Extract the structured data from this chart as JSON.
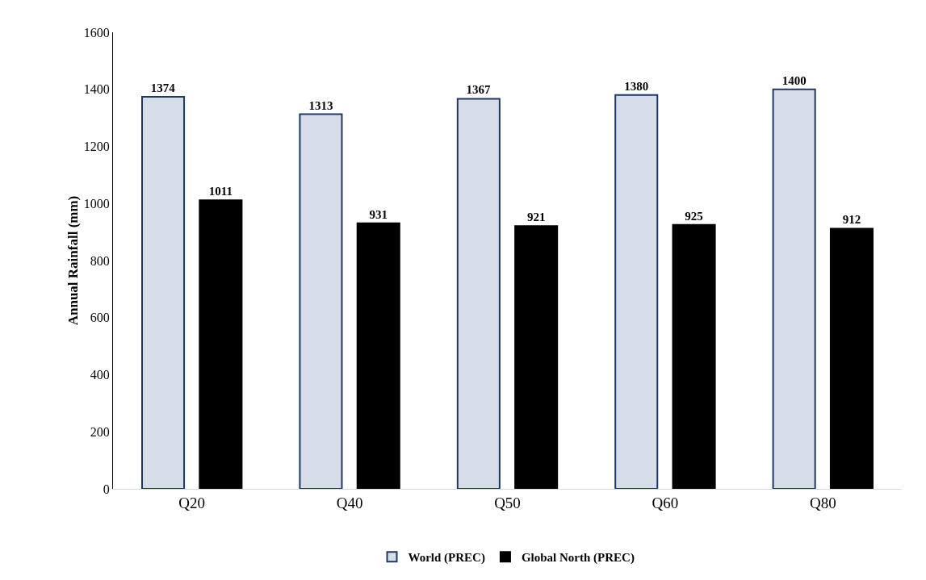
{
  "chart_data": {
    "type": "bar",
    "ylabel": "Annual Rainfall (mm)",
    "categories": [
      "Q20",
      "Q40",
      "Q50",
      "Q60",
      "Q80"
    ],
    "series": [
      {
        "name": "World (PREC)",
        "color": "#d6dce8",
        "values": [
          1374,
          1313,
          1367,
          1380,
          1400
        ]
      },
      {
        "name": "Global North (PREC)",
        "color": "#000000",
        "values": [
          1011,
          931,
          921,
          925,
          912
        ]
      }
    ],
    "ylim": [
      0,
      1600
    ],
    "yticks": [
      0,
      200,
      400,
      600,
      800,
      1000,
      1200,
      1400,
      1600
    ],
    "grid": false,
    "legend": "bottom",
    "data_labels": true
  }
}
